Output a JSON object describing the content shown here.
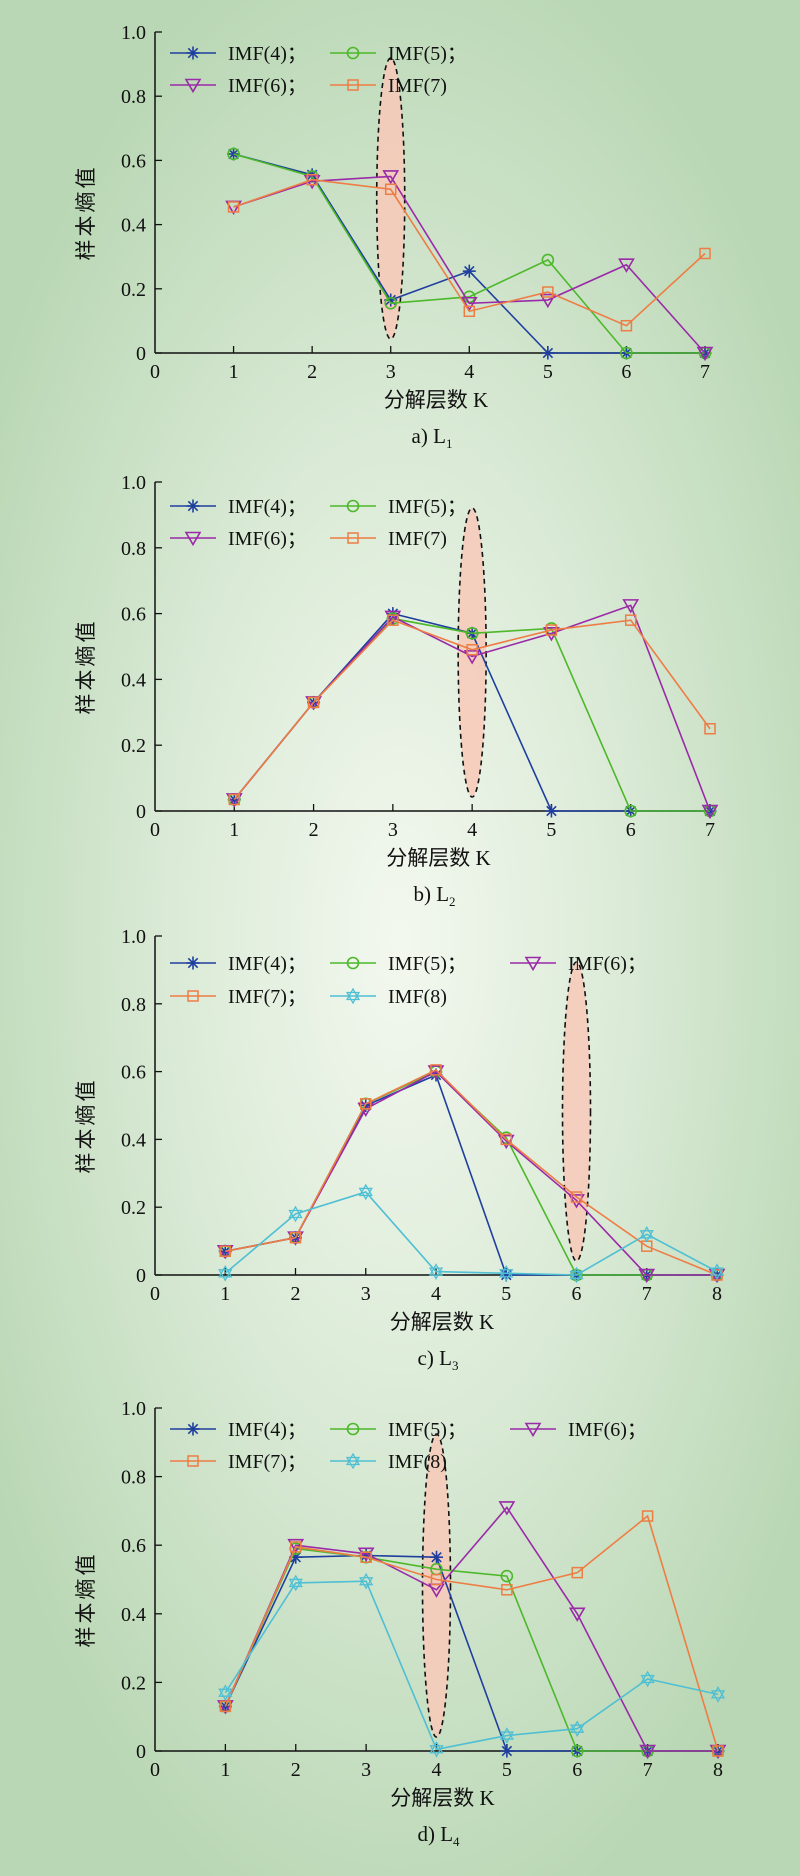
{
  "figure": {
    "ylabel": "样本熵值",
    "xlabel": "分解层数",
    "xlabel_var": "K"
  },
  "chart_data": [
    {
      "type": "line",
      "caption": "a) L",
      "caption_sub": "1",
      "xlabel": "分解层数 K",
      "ylabel": "样本熵值",
      "x": [
        1,
        2,
        3,
        4,
        5,
        6,
        7
      ],
      "xlim": [
        0,
        7
      ],
      "ylim": [
        0,
        1.0
      ],
      "xticks": [
        "0",
        "1",
        "2",
        "3",
        "4",
        "5",
        "6",
        "7"
      ],
      "yticks": [
        "0",
        "0.2",
        "0.4",
        "0.6",
        "0.8",
        "1.0"
      ],
      "highlight_x": 3,
      "legend": [
        [
          "IMF(4)；",
          "IMF(5)；"
        ],
        [
          "IMF(6)；",
          "IMF(7)"
        ]
      ],
      "series": [
        {
          "name": "IMF(4)",
          "marker": "asterisk",
          "color": "#1f3f9e",
          "values": [
            0.62,
            0.555,
            0.165,
            0.255,
            0.0,
            0.0,
            0.0
          ]
        },
        {
          "name": "IMF(5)",
          "marker": "circle",
          "color": "#4cb82a",
          "values": [
            0.62,
            0.55,
            0.155,
            0.175,
            0.29,
            0.0,
            0.0
          ]
        },
        {
          "name": "IMF(6)",
          "marker": "triangle",
          "color": "#9a2aa8",
          "values": [
            0.455,
            0.535,
            0.55,
            0.155,
            0.165,
            0.275,
            0.0
          ]
        },
        {
          "name": "IMF(7)",
          "marker": "square",
          "color": "#ee7d45",
          "values": [
            0.455,
            0.54,
            0.51,
            0.13,
            0.19,
            0.085,
            0.31
          ]
        }
      ]
    },
    {
      "type": "line",
      "caption": "b) L",
      "caption_sub": "2",
      "xlabel": "分解层数 K",
      "ylabel": "样本熵值",
      "x": [
        1,
        2,
        3,
        4,
        5,
        6,
        7
      ],
      "xlim": [
        0,
        7
      ],
      "ylim": [
        0,
        1.0
      ],
      "xticks": [
        "0",
        "1",
        "2",
        "3",
        "4",
        "5",
        "6",
        "7"
      ],
      "yticks": [
        "0",
        "0.2",
        "0.4",
        "0.6",
        "0.8",
        "1.0"
      ],
      "highlight_x": 4,
      "legend": [
        [
          "IMF(4)；",
          "IMF(5)；"
        ],
        [
          "IMF(6)；",
          "IMF(7)"
        ]
      ],
      "series": [
        {
          "name": "IMF(4)",
          "marker": "asterisk",
          "color": "#1f3f9e",
          "values": [
            0.035,
            0.33,
            0.6,
            0.54,
            0.0,
            0.0,
            0.0
          ]
        },
        {
          "name": "IMF(5)",
          "marker": "circle",
          "color": "#4cb82a",
          "values": [
            0.035,
            0.33,
            0.585,
            0.54,
            0.555,
            0.0,
            0.0
          ]
        },
        {
          "name": "IMF(6)",
          "marker": "triangle",
          "color": "#9a2aa8",
          "values": [
            0.035,
            0.33,
            0.59,
            0.47,
            0.54,
            0.625,
            0.0
          ]
        },
        {
          "name": "IMF(7)",
          "marker": "square",
          "color": "#ee7d45",
          "values": [
            0.035,
            0.33,
            0.58,
            0.49,
            0.55,
            0.58,
            0.25
          ]
        }
      ]
    },
    {
      "type": "line",
      "caption": "c) L",
      "caption_sub": "3",
      "xlabel": "分解层数 K",
      "ylabel": "样本熵值",
      "x": [
        1,
        2,
        3,
        4,
        5,
        6,
        7,
        8
      ],
      "xlim": [
        0,
        8
      ],
      "ylim": [
        0,
        1.0
      ],
      "xticks": [
        "0",
        "1",
        "2",
        "3",
        "4",
        "5",
        "6",
        "7",
        "8"
      ],
      "yticks": [
        "0",
        "0.2",
        "0.4",
        "0.6",
        "0.8",
        "1.0"
      ],
      "highlight_x": 6,
      "legend": [
        [
          "IMF(4)；",
          "IMF(5)；",
          "IMF(6)；"
        ],
        [
          "IMF(7)；",
          "IMF(8)"
        ]
      ],
      "series": [
        {
          "name": "IMF(4)",
          "marker": "asterisk",
          "color": "#1f3f9e",
          "values": [
            0.07,
            0.11,
            0.5,
            0.59,
            0.0,
            0.0,
            0.0,
            0.0
          ]
        },
        {
          "name": "IMF(5)",
          "marker": "circle",
          "color": "#4cb82a",
          "values": [
            0.07,
            0.11,
            0.505,
            0.6,
            0.405,
            0.0,
            0.0,
            0.0
          ]
        },
        {
          "name": "IMF(6)",
          "marker": "triangle",
          "color": "#9a2aa8",
          "values": [
            0.07,
            0.11,
            0.49,
            0.6,
            0.395,
            0.22,
            0.0,
            0.0
          ]
        },
        {
          "name": "IMF(7)",
          "marker": "square",
          "color": "#ee7d45",
          "values": [
            0.07,
            0.11,
            0.505,
            0.605,
            0.4,
            0.23,
            0.085,
            0.0
          ]
        },
        {
          "name": "IMF(8)",
          "marker": "star",
          "color": "#4fbfd3",
          "values": [
            0.005,
            0.18,
            0.245,
            0.01,
            0.005,
            0.0,
            0.12,
            0.01
          ]
        }
      ]
    },
    {
      "type": "line",
      "caption": "d) L",
      "caption_sub": "4",
      "xlabel": "分解层数 K",
      "ylabel": "样本熵值",
      "x": [
        1,
        2,
        3,
        4,
        5,
        6,
        7,
        8
      ],
      "xlim": [
        0,
        8
      ],
      "ylim": [
        0,
        1.0
      ],
      "xticks": [
        "0",
        "1",
        "2",
        "3",
        "4",
        "5",
        "6",
        "7",
        "8"
      ],
      "yticks": [
        "0",
        "0.2",
        "0.4",
        "0.6",
        "0.8",
        "1.0"
      ],
      "highlight_x": 4,
      "legend": [
        [
          "IMF(4)；",
          "IMF(5)；",
          "IMF(6)；"
        ],
        [
          "IMF(7)；",
          "IMF(8)"
        ]
      ],
      "series": [
        {
          "name": "IMF(4)",
          "marker": "asterisk",
          "color": "#1f3f9e",
          "values": [
            0.13,
            0.565,
            0.57,
            0.565,
            0.0,
            0.0,
            0.0,
            0.0
          ]
        },
        {
          "name": "IMF(5)",
          "marker": "circle",
          "color": "#4cb82a",
          "values": [
            0.13,
            0.59,
            0.565,
            0.53,
            0.51,
            0.0,
            0.0,
            0.0
          ]
        },
        {
          "name": "IMF(6)",
          "marker": "triangle",
          "color": "#9a2aa8",
          "values": [
            0.13,
            0.6,
            0.575,
            0.47,
            0.71,
            0.4,
            0.0,
            0.0
          ]
        },
        {
          "name": "IMF(7)",
          "marker": "square",
          "color": "#ee7d45",
          "values": [
            0.13,
            0.595,
            0.565,
            0.5,
            0.47,
            0.52,
            0.685,
            0.0
          ]
        },
        {
          "name": "IMF(8)",
          "marker": "star",
          "color": "#4fbfd3",
          "values": [
            0.17,
            0.49,
            0.495,
            0.005,
            0.045,
            0.065,
            0.21,
            0.165
          ]
        }
      ]
    }
  ]
}
